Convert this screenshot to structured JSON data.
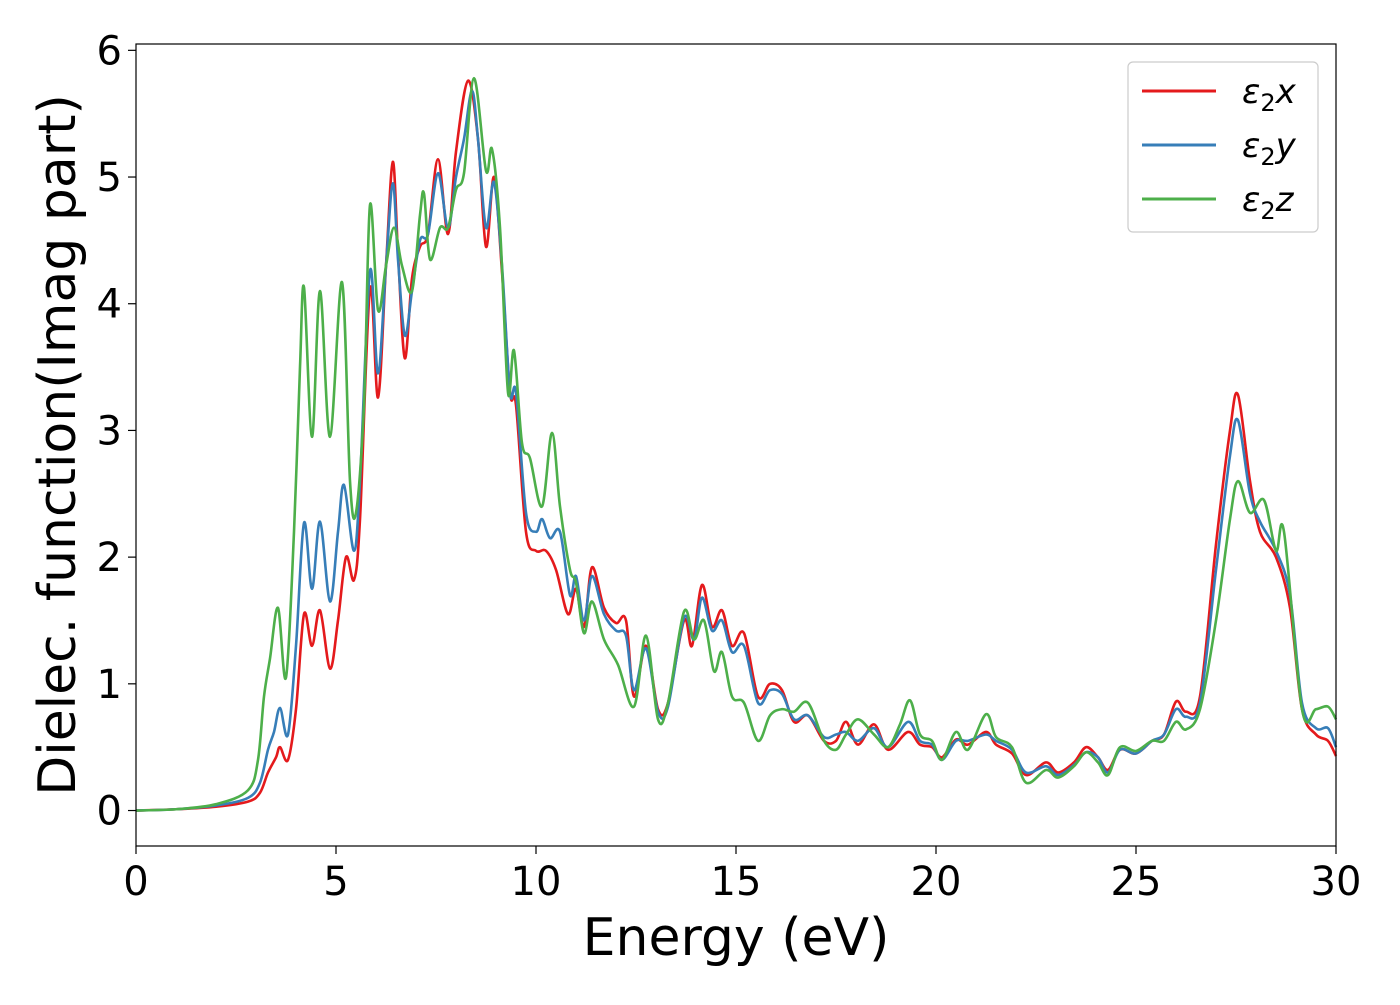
{
  "chart_data": {
    "type": "line",
    "xlabel": "Energy (eV)",
    "ylabel": "Dielec. function(Imag part)",
    "xlim": [
      0,
      30
    ],
    "ylim": [
      -0.28,
      6.05
    ],
    "xticks": [
      0,
      5,
      10,
      15,
      20,
      25,
      30
    ],
    "yticks": [
      0,
      1,
      2,
      3,
      4,
      5,
      6
    ],
    "grid": false,
    "legend_position": "top-right",
    "series": [
      {
        "name": "ε₂x",
        "legend": {
          "base": "ε",
          "sub": "2",
          "var": "x"
        },
        "color": "#e41a1c",
        "points": [
          [
            0,
            0
          ],
          [
            1,
            0.01
          ],
          [
            2,
            0.03
          ],
          [
            2.8,
            0.07
          ],
          [
            3.1,
            0.14
          ],
          [
            3.3,
            0.3
          ],
          [
            3.5,
            0.42
          ],
          [
            3.6,
            0.5
          ],
          [
            3.8,
            0.4
          ],
          [
            4.0,
            0.8
          ],
          [
            4.2,
            1.55
          ],
          [
            4.4,
            1.3
          ],
          [
            4.6,
            1.58
          ],
          [
            4.85,
            1.12
          ],
          [
            5.05,
            1.5
          ],
          [
            5.25,
            2.0
          ],
          [
            5.45,
            1.82
          ],
          [
            5.6,
            2.3
          ],
          [
            5.85,
            4.12
          ],
          [
            6.05,
            3.26
          ],
          [
            6.25,
            4.3
          ],
          [
            6.42,
            5.12
          ],
          [
            6.55,
            4.4
          ],
          [
            6.72,
            3.57
          ],
          [
            6.9,
            4.2
          ],
          [
            7.1,
            4.45
          ],
          [
            7.3,
            4.55
          ],
          [
            7.55,
            5.14
          ],
          [
            7.8,
            4.55
          ],
          [
            8.0,
            5.2
          ],
          [
            8.3,
            5.76
          ],
          [
            8.55,
            5.3
          ],
          [
            8.75,
            4.45
          ],
          [
            8.95,
            5.0
          ],
          [
            9.15,
            4.25
          ],
          [
            9.35,
            3.3
          ],
          [
            9.5,
            3.2
          ],
          [
            9.75,
            2.2
          ],
          [
            10.0,
            2.05
          ],
          [
            10.25,
            2.05
          ],
          [
            10.5,
            1.9
          ],
          [
            10.8,
            1.55
          ],
          [
            11.0,
            1.75
          ],
          [
            11.2,
            1.45
          ],
          [
            11.4,
            1.92
          ],
          [
            11.7,
            1.6
          ],
          [
            12.0,
            1.48
          ],
          [
            12.25,
            1.5
          ],
          [
            12.45,
            0.9
          ],
          [
            12.75,
            1.3
          ],
          [
            13.05,
            0.8
          ],
          [
            13.3,
            0.85
          ],
          [
            13.7,
            1.5
          ],
          [
            13.9,
            1.3
          ],
          [
            14.15,
            1.78
          ],
          [
            14.4,
            1.45
          ],
          [
            14.65,
            1.58
          ],
          [
            14.9,
            1.3
          ],
          [
            15.2,
            1.4
          ],
          [
            15.55,
            0.9
          ],
          [
            15.85,
            1.0
          ],
          [
            16.15,
            0.95
          ],
          [
            16.45,
            0.7
          ],
          [
            16.8,
            0.75
          ],
          [
            17.2,
            0.55
          ],
          [
            17.5,
            0.55
          ],
          [
            17.75,
            0.7
          ],
          [
            18.05,
            0.52
          ],
          [
            18.45,
            0.68
          ],
          [
            18.8,
            0.48
          ],
          [
            19.3,
            0.62
          ],
          [
            19.6,
            0.52
          ],
          [
            19.9,
            0.5
          ],
          [
            20.15,
            0.42
          ],
          [
            20.5,
            0.56
          ],
          [
            20.8,
            0.52
          ],
          [
            21.25,
            0.62
          ],
          [
            21.5,
            0.52
          ],
          [
            21.9,
            0.45
          ],
          [
            22.25,
            0.28
          ],
          [
            22.75,
            0.38
          ],
          [
            23.05,
            0.3
          ],
          [
            23.45,
            0.38
          ],
          [
            23.75,
            0.5
          ],
          [
            24.05,
            0.42
          ],
          [
            24.3,
            0.32
          ],
          [
            24.6,
            0.48
          ],
          [
            25.0,
            0.45
          ],
          [
            25.4,
            0.55
          ],
          [
            25.7,
            0.6
          ],
          [
            26.0,
            0.86
          ],
          [
            26.25,
            0.78
          ],
          [
            26.6,
            0.9
          ],
          [
            27.0,
            2.1
          ],
          [
            27.35,
            3.0
          ],
          [
            27.55,
            3.28
          ],
          [
            27.85,
            2.6
          ],
          [
            28.1,
            2.2
          ],
          [
            28.5,
            2.0
          ],
          [
            28.85,
            1.6
          ],
          [
            29.15,
            0.8
          ],
          [
            29.5,
            0.6
          ],
          [
            29.8,
            0.55
          ],
          [
            30,
            0.43
          ]
        ]
      },
      {
        "name": "ε₂y",
        "legend": {
          "base": "ε",
          "sub": "2",
          "var": "y"
        },
        "color": "#377eb8",
        "points": [
          [
            0,
            0
          ],
          [
            1,
            0.01
          ],
          [
            2,
            0.04
          ],
          [
            2.8,
            0.1
          ],
          [
            3.1,
            0.22
          ],
          [
            3.3,
            0.48
          ],
          [
            3.45,
            0.62
          ],
          [
            3.6,
            0.81
          ],
          [
            3.8,
            0.6
          ],
          [
            4.0,
            1.3
          ],
          [
            4.2,
            2.27
          ],
          [
            4.4,
            1.75
          ],
          [
            4.6,
            2.28
          ],
          [
            4.85,
            1.65
          ],
          [
            5.05,
            2.2
          ],
          [
            5.2,
            2.57
          ],
          [
            5.45,
            2.05
          ],
          [
            5.6,
            2.6
          ],
          [
            5.85,
            4.26
          ],
          [
            6.05,
            3.45
          ],
          [
            6.25,
            4.3
          ],
          [
            6.42,
            4.95
          ],
          [
            6.55,
            4.35
          ],
          [
            6.72,
            3.75
          ],
          [
            6.9,
            4.1
          ],
          [
            7.1,
            4.5
          ],
          [
            7.3,
            4.55
          ],
          [
            7.55,
            5.03
          ],
          [
            7.8,
            4.6
          ],
          [
            8.0,
            5.0
          ],
          [
            8.2,
            5.3
          ],
          [
            8.4,
            5.68
          ],
          [
            8.55,
            5.3
          ],
          [
            8.75,
            4.6
          ],
          [
            8.95,
            4.96
          ],
          [
            9.15,
            4.3
          ],
          [
            9.35,
            3.3
          ],
          [
            9.5,
            3.3
          ],
          [
            9.75,
            2.35
          ],
          [
            10.0,
            2.2
          ],
          [
            10.15,
            2.3
          ],
          [
            10.35,
            2.15
          ],
          [
            10.6,
            2.2
          ],
          [
            10.85,
            1.7
          ],
          [
            11.0,
            1.85
          ],
          [
            11.2,
            1.5
          ],
          [
            11.4,
            1.85
          ],
          [
            11.7,
            1.55
          ],
          [
            12.0,
            1.42
          ],
          [
            12.25,
            1.38
          ],
          [
            12.45,
            0.95
          ],
          [
            12.75,
            1.28
          ],
          [
            13.05,
            0.78
          ],
          [
            13.3,
            0.82
          ],
          [
            13.7,
            1.52
          ],
          [
            13.95,
            1.35
          ],
          [
            14.15,
            1.68
          ],
          [
            14.4,
            1.42
          ],
          [
            14.65,
            1.5
          ],
          [
            14.9,
            1.25
          ],
          [
            15.2,
            1.3
          ],
          [
            15.55,
            0.85
          ],
          [
            15.85,
            0.95
          ],
          [
            16.15,
            0.92
          ],
          [
            16.45,
            0.72
          ],
          [
            16.8,
            0.75
          ],
          [
            17.2,
            0.58
          ],
          [
            17.5,
            0.6
          ],
          [
            17.75,
            0.62
          ],
          [
            18.05,
            0.55
          ],
          [
            18.45,
            0.65
          ],
          [
            18.8,
            0.5
          ],
          [
            19.3,
            0.7
          ],
          [
            19.6,
            0.55
          ],
          [
            19.9,
            0.52
          ],
          [
            20.15,
            0.4
          ],
          [
            20.5,
            0.55
          ],
          [
            20.8,
            0.55
          ],
          [
            21.25,
            0.6
          ],
          [
            21.5,
            0.55
          ],
          [
            21.9,
            0.48
          ],
          [
            22.25,
            0.3
          ],
          [
            22.75,
            0.35
          ],
          [
            23.05,
            0.28
          ],
          [
            23.45,
            0.36
          ],
          [
            23.75,
            0.46
          ],
          [
            24.05,
            0.42
          ],
          [
            24.3,
            0.3
          ],
          [
            24.6,
            0.48
          ],
          [
            25.0,
            0.45
          ],
          [
            25.4,
            0.55
          ],
          [
            25.7,
            0.6
          ],
          [
            26.0,
            0.8
          ],
          [
            26.25,
            0.74
          ],
          [
            26.6,
            0.85
          ],
          [
            27.0,
            1.9
          ],
          [
            27.35,
            2.8
          ],
          [
            27.55,
            3.08
          ],
          [
            27.85,
            2.5
          ],
          [
            28.1,
            2.28
          ],
          [
            28.5,
            2.05
          ],
          [
            28.85,
            1.7
          ],
          [
            29.15,
            0.85
          ],
          [
            29.5,
            0.65
          ],
          [
            29.8,
            0.65
          ],
          [
            30,
            0.5
          ]
        ]
      },
      {
        "name": "ε₂z",
        "legend": {
          "base": "ε",
          "sub": "2",
          "var": "z"
        },
        "color": "#4daf4a",
        "points": [
          [
            0,
            0
          ],
          [
            1,
            0.01
          ],
          [
            2,
            0.05
          ],
          [
            2.8,
            0.16
          ],
          [
            3.05,
            0.4
          ],
          [
            3.2,
            0.9
          ],
          [
            3.35,
            1.2
          ],
          [
            3.55,
            1.6
          ],
          [
            3.75,
            1.05
          ],
          [
            3.95,
            2.2
          ],
          [
            4.1,
            3.5
          ],
          [
            4.2,
            4.13
          ],
          [
            4.4,
            2.95
          ],
          [
            4.6,
            4.1
          ],
          [
            4.85,
            2.95
          ],
          [
            5.15,
            4.17
          ],
          [
            5.35,
            2.6
          ],
          [
            5.5,
            2.35
          ],
          [
            5.7,
            3.2
          ],
          [
            5.85,
            4.78
          ],
          [
            6.05,
            3.95
          ],
          [
            6.25,
            4.3
          ],
          [
            6.45,
            4.6
          ],
          [
            6.65,
            4.3
          ],
          [
            6.9,
            4.1
          ],
          [
            7.1,
            4.7
          ],
          [
            7.2,
            4.87
          ],
          [
            7.35,
            4.35
          ],
          [
            7.6,
            4.6
          ],
          [
            7.8,
            4.6
          ],
          [
            8.0,
            4.9
          ],
          [
            8.2,
            5.03
          ],
          [
            8.45,
            5.78
          ],
          [
            8.75,
            5.05
          ],
          [
            8.9,
            5.22
          ],
          [
            9.1,
            4.6
          ],
          [
            9.3,
            3.3
          ],
          [
            9.45,
            3.63
          ],
          [
            9.65,
            2.9
          ],
          [
            9.85,
            2.78
          ],
          [
            10.15,
            2.4
          ],
          [
            10.4,
            2.98
          ],
          [
            10.6,
            2.4
          ],
          [
            10.85,
            1.9
          ],
          [
            11.0,
            1.8
          ],
          [
            11.2,
            1.4
          ],
          [
            11.4,
            1.65
          ],
          [
            11.7,
            1.35
          ],
          [
            12.05,
            1.15
          ],
          [
            12.45,
            0.82
          ],
          [
            12.75,
            1.38
          ],
          [
            13.05,
            0.72
          ],
          [
            13.3,
            0.85
          ],
          [
            13.7,
            1.57
          ],
          [
            13.95,
            1.35
          ],
          [
            14.2,
            1.5
          ],
          [
            14.45,
            1.1
          ],
          [
            14.65,
            1.25
          ],
          [
            14.9,
            0.9
          ],
          [
            15.2,
            0.85
          ],
          [
            15.55,
            0.55
          ],
          [
            15.85,
            0.75
          ],
          [
            16.15,
            0.8
          ],
          [
            16.45,
            0.78
          ],
          [
            16.8,
            0.85
          ],
          [
            17.2,
            0.55
          ],
          [
            17.5,
            0.48
          ],
          [
            17.75,
            0.6
          ],
          [
            18.05,
            0.72
          ],
          [
            18.45,
            0.6
          ],
          [
            18.8,
            0.5
          ],
          [
            19.1,
            0.68
          ],
          [
            19.35,
            0.87
          ],
          [
            19.6,
            0.6
          ],
          [
            19.9,
            0.55
          ],
          [
            20.15,
            0.4
          ],
          [
            20.5,
            0.62
          ],
          [
            20.8,
            0.48
          ],
          [
            21.25,
            0.76
          ],
          [
            21.5,
            0.58
          ],
          [
            21.9,
            0.5
          ],
          [
            22.25,
            0.22
          ],
          [
            22.75,
            0.32
          ],
          [
            23.05,
            0.26
          ],
          [
            23.45,
            0.35
          ],
          [
            23.75,
            0.46
          ],
          [
            24.05,
            0.38
          ],
          [
            24.3,
            0.28
          ],
          [
            24.6,
            0.5
          ],
          [
            25.0,
            0.47
          ],
          [
            25.4,
            0.55
          ],
          [
            25.7,
            0.55
          ],
          [
            26.0,
            0.7
          ],
          [
            26.25,
            0.64
          ],
          [
            26.6,
            0.8
          ],
          [
            27.0,
            1.5
          ],
          [
            27.35,
            2.3
          ],
          [
            27.55,
            2.6
          ],
          [
            27.85,
            2.35
          ],
          [
            28.2,
            2.45
          ],
          [
            28.5,
            2.05
          ],
          [
            28.7,
            2.2
          ],
          [
            29.15,
            0.8
          ],
          [
            29.5,
            0.8
          ],
          [
            29.8,
            0.82
          ],
          [
            30,
            0.72
          ]
        ]
      }
    ]
  }
}
